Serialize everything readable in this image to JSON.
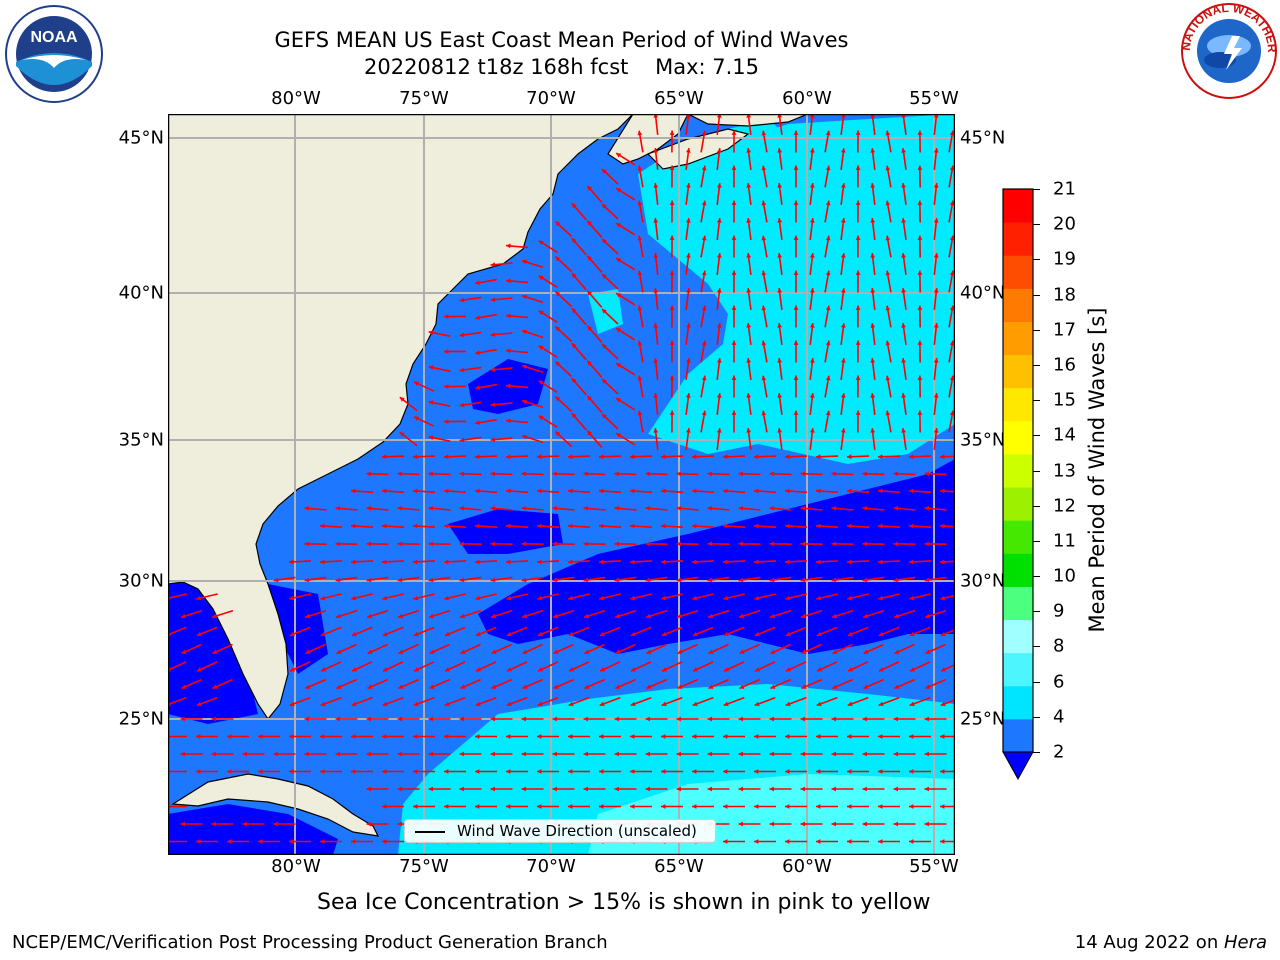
{
  "header": {
    "title_line1": "GEFS MEAN US East Coast Mean Period of Wind Waves",
    "title_line2": "20220812 t18z 168h fcst    Max: 7.15"
  },
  "logos": {
    "noaa_text": "NOAA",
    "nws_text": "NATIONAL WEATHER SERVICE"
  },
  "map": {
    "lon_labels": [
      "80°W",
      "75°W",
      "70°W",
      "65°W",
      "60°W",
      "55°W"
    ],
    "lat_labels": [
      "45°N",
      "40°N",
      "35°N",
      "30°N",
      "25°N"
    ],
    "legend_text": "Wind Wave Direction (unscaled)",
    "arrow_color": "#ff0000",
    "land_color": "#efeddc",
    "region_colors": {
      "2-4": "#1e78ff",
      "4-6": "#00ebff",
      "6-8": "#4dffff",
      "below-2": "#0000ff"
    }
  },
  "colorbar": {
    "label": "Mean Period of Wind Waves [s]",
    "ticks": [
      "2",
      "4",
      "6",
      "8",
      "9",
      "10",
      "11",
      "12",
      "13",
      "14",
      "15",
      "16",
      "17",
      "18",
      "19",
      "20",
      "21"
    ],
    "colors": [
      "#1e78ff",
      "#00e5ff",
      "#4df5ff",
      "#a0ffff",
      "#4dff7e",
      "#00e000",
      "#44e800",
      "#9cf000",
      "#ccff00",
      "#ffff00",
      "#ffe800",
      "#ffc000",
      "#ff9c00",
      "#ff7a00",
      "#ff4d00",
      "#ff2000",
      "#ff0000"
    ],
    "under_color": "#0000ff"
  },
  "notes": {
    "sea_ice": "Sea Ice Concentration > 15% is shown in pink to yellow",
    "producer": "NCEP/EMC/Verification Post Processing Product Generation Branch",
    "date_prefix": "14 Aug 2022 on ",
    "machine": "Hera"
  }
}
